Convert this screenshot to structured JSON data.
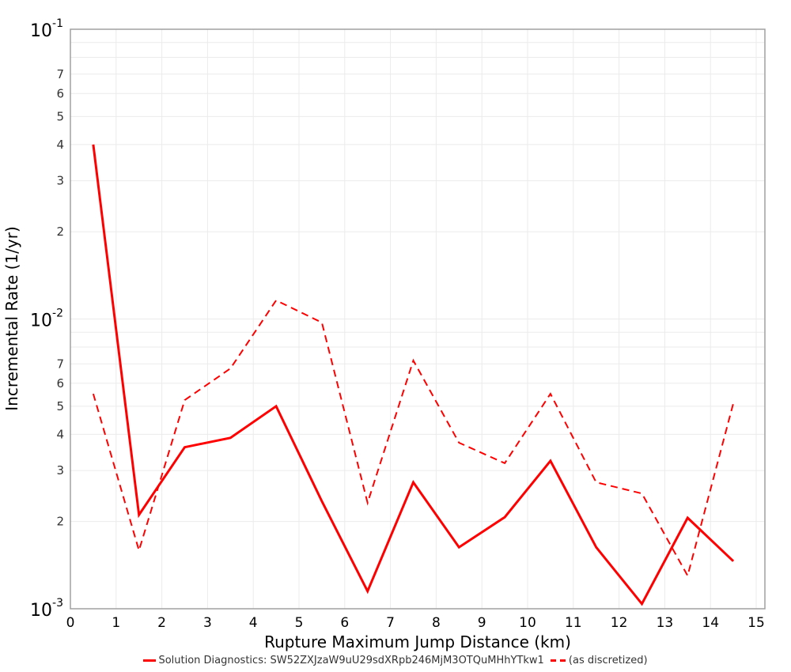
{
  "chart_data": {
    "type": "line",
    "title": "",
    "xlabel": "Rupture Maximum Jump Distance (km)",
    "ylabel": "Incremental Rate (1/yr)",
    "xlim": [
      0,
      15.2
    ],
    "ylim": [
      0.001,
      0.1
    ],
    "yscale": "log",
    "grid": true,
    "legend_position": "bottom",
    "x_ticks": [
      "0",
      "1",
      "2",
      "3",
      "4",
      "5",
      "6",
      "7",
      "8",
      "9",
      "10",
      "11",
      "12",
      "13",
      "14",
      "15"
    ],
    "y_major_ticks": [
      {
        "base": "10",
        "exp": "-1",
        "value": 0.1
      },
      {
        "base": "10",
        "exp": "-2",
        "value": 0.01
      },
      {
        "base": "10",
        "exp": "-3",
        "value": 0.001
      }
    ],
    "y_minor_tick_labels": [
      "2",
      "3",
      "4",
      "5",
      "6",
      "7"
    ],
    "x": [
      0.5,
      1.5,
      2.5,
      3.5,
      4.5,
      5.5,
      6.5,
      7.5,
      8.5,
      9.5,
      10.5,
      11.5,
      12.5,
      13.5,
      14.5
    ],
    "series": [
      {
        "name": "Solution Diagnostics: SW52ZXJzaW9uU29sdXRpb246MjM3OTQuMHhYTkw1",
        "style": "solid",
        "color": "#ff0000",
        "values": [
          0.04,
          0.00211,
          0.00361,
          0.00389,
          0.005,
          0.00235,
          0.00115,
          0.00273,
          0.00163,
          0.00207,
          0.00324,
          0.00163,
          0.00104,
          0.00206,
          0.00146
        ]
      },
      {
        "name": "(as discretized)",
        "style": "dashed",
        "color": "#ff0000",
        "values": [
          0.00552,
          0.00159,
          0.00525,
          0.00675,
          0.0116,
          0.00972,
          0.00232,
          0.00719,
          0.00374,
          0.00318,
          0.00552,
          0.00273,
          0.0025,
          0.0013,
          0.00512
        ]
      }
    ]
  },
  "legend": {
    "items": [
      {
        "label": "Solution Diagnostics: SW52ZXJzaW9uU29sdXRpb246MjM3OTQuMHhYTkw1"
      },
      {
        "label": "(as discretized)"
      }
    ]
  },
  "colors": {
    "series": "#ff0000",
    "grid": "#ebebeb",
    "frame": "#a0a0a0"
  }
}
